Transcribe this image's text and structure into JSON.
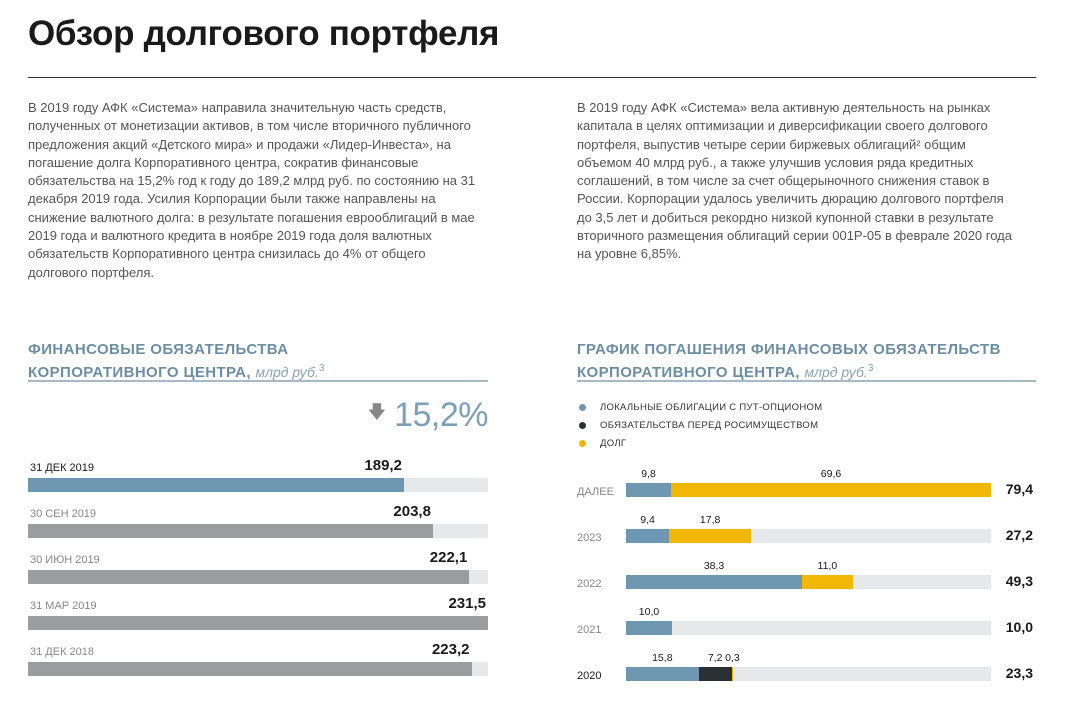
{
  "page": {
    "title": "Обзор долгового портфеля",
    "para_left": "В 2019 году АФК «Система» направила значительную часть средств, полученных от монетизации активов, в том числе вторичного публичного предложения акций «Детского мира» и продажи «Лидер-Инвеста», на погашение долга Корпоративного центра, сократив финансовые обязательства на 15,2% год к году до 189,2 млрд руб. по состоянию на 31 декабря 2019 года. Усилия Корпорации были также направлены на снижение валютного долга: в результате погашения еврооблигаций в мае 2019 года и валютного кредита в ноябре 2019 года доля валютных обязательств Корпоративного центра снизилась до 4% от общего долгового портфеля.",
    "para_right": "В 2019 году АФК «Система» вела активную деятельность на рынках капитала в целях оптимизации и диверсификации своего долгового портфеля, выпустив четыре серии биржевых облигаций² общим объемом 40 млрд руб., а также улучшив условия ряда кредитных соглашений, в том числе за счет общерыночного снижения ставок в России. Корпорации удалось увеличить дюрацию долгового портфеля до 3,5 лет и добиться рекордно низкой купонной ставки в результате вторичного размещения облигаций серии 001Р-05 в феврале 2020 года на уровне 6,85%."
  },
  "chart_data": [
    {
      "type": "bar",
      "orientation": "horizontal",
      "title_line1": "ФИНАНСОВЫЕ ОБЯЗАТЕЛЬСТВА",
      "title_line2": "КОРПОРАТИВНОГО ЦЕНТРА,",
      "unit": "млрд руб.",
      "footnote": "3",
      "change_label": "15,2%",
      "categories": [
        "31 ДЕК 2019",
        "30 СЕН 2019",
        "30 ИЮН 2019",
        "31 МАР 2019",
        "31 ДЕК 2018"
      ],
      "values": [
        189.2,
        203.8,
        222.1,
        231.5,
        223.2
      ],
      "value_labels": [
        "189,2",
        "203,8",
        "222,1",
        "231,5",
        "223,2"
      ],
      "xlim": [
        0,
        231.5
      ],
      "colors": {
        "current": "#6f97b1",
        "previous": "#9a9c9e",
        "track": "#e6e8ea",
        "accent": "#7ba0b9"
      }
    },
    {
      "type": "bar",
      "orientation": "horizontal",
      "stacked": true,
      "title_line1": "ГРАФИК ПОГАШЕНИЯ ФИНАНСОВЫХ ОБЯЗАТЕЛЬСТВ",
      "title_line2": "КОРПОРАТИВНОГО ЦЕНТРА,",
      "unit": "млрд руб.",
      "footnote": "3",
      "legend_position": "top-left",
      "categories": [
        "ДАЛЕЕ",
        "2023",
        "2022",
        "2021",
        "2020"
      ],
      "series": [
        {
          "name": "ЛОКАЛЬНЫЕ ОБЛИГАЦИИ С ПУТ-ОПЦИОНОМ",
          "color": "#6f97b1",
          "values": [
            9.8,
            9.4,
            38.3,
            10.0,
            15.8
          ],
          "labels": [
            "9,8",
            "9,4",
            "38,3",
            "10,0",
            "15,8"
          ]
        },
        {
          "name": "ОБЯЗАТЕЛЬСТВА ПЕРЕД РОСИМУЩЕСТВОМ",
          "color": "#2b3035",
          "values": [
            0,
            0,
            0,
            0,
            7.2
          ],
          "labels": [
            "",
            "",
            "",
            "",
            "7,2"
          ]
        },
        {
          "name": "ДОЛГ",
          "color": "#f2b705",
          "values": [
            69.6,
            17.8,
            11.0,
            0,
            0.3
          ],
          "labels": [
            "69,6",
            "17,8",
            "11,0",
            "",
            "0,3"
          ]
        }
      ],
      "totals": [
        "79,4",
        "27,2",
        "49,3",
        "10,0",
        "23,3"
      ],
      "xlim": [
        0,
        79.4
      ],
      "track_color": "#e6e8ea"
    }
  ]
}
